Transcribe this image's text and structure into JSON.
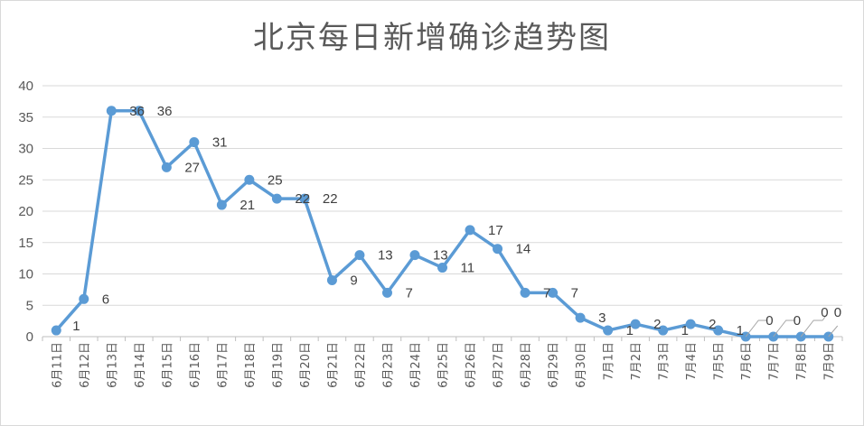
{
  "chart_data": {
    "type": "line",
    "title": "北京每日新增确诊趋势图",
    "xlabel": "",
    "ylabel": "",
    "ylim": [
      0,
      40
    ],
    "yticks": [
      0,
      5,
      10,
      15,
      20,
      25,
      30,
      35,
      40
    ],
    "grid": true,
    "legend": "none",
    "categories": [
      "6月11日",
      "6月12日",
      "6月13日",
      "6月14日",
      "6月15日",
      "6月16日",
      "6月17日",
      "6月18日",
      "6月19日",
      "6月20日",
      "6月21日",
      "6月22日",
      "6月23日",
      "6月24日",
      "6月25日",
      "6月26日",
      "6月27日",
      "6月28日",
      "6月29日",
      "6月30日",
      "7月1日",
      "7月2日",
      "7月3日",
      "7月4日",
      "7月5日",
      "7月6日",
      "7月7日",
      "7月8日",
      "7月9日"
    ],
    "series": [
      {
        "color": "#5b9bd5",
        "values": [
          1,
          6,
          36,
          36,
          27,
          31,
          21,
          25,
          22,
          22,
          9,
          13,
          7,
          13,
          11,
          17,
          14,
          7,
          7,
          3,
          1,
          2,
          1,
          2,
          1,
          0,
          0,
          0,
          0
        ]
      }
    ],
    "data_labels": [
      "1",
      "6",
      "36",
      "36",
      "27",
      "31",
      "21",
      "25",
      "22",
      "22",
      "9",
      "13",
      "7",
      "13",
      "11",
      "17",
      "14",
      "7",
      "7",
      "3",
      "1",
      "2",
      "1",
      "2",
      "1",
      "0",
      "0",
      "0",
      "0"
    ],
    "colors": {
      "line": "#5b9bd5",
      "grid": "#d9d9d9",
      "text": "#595959"
    }
  }
}
